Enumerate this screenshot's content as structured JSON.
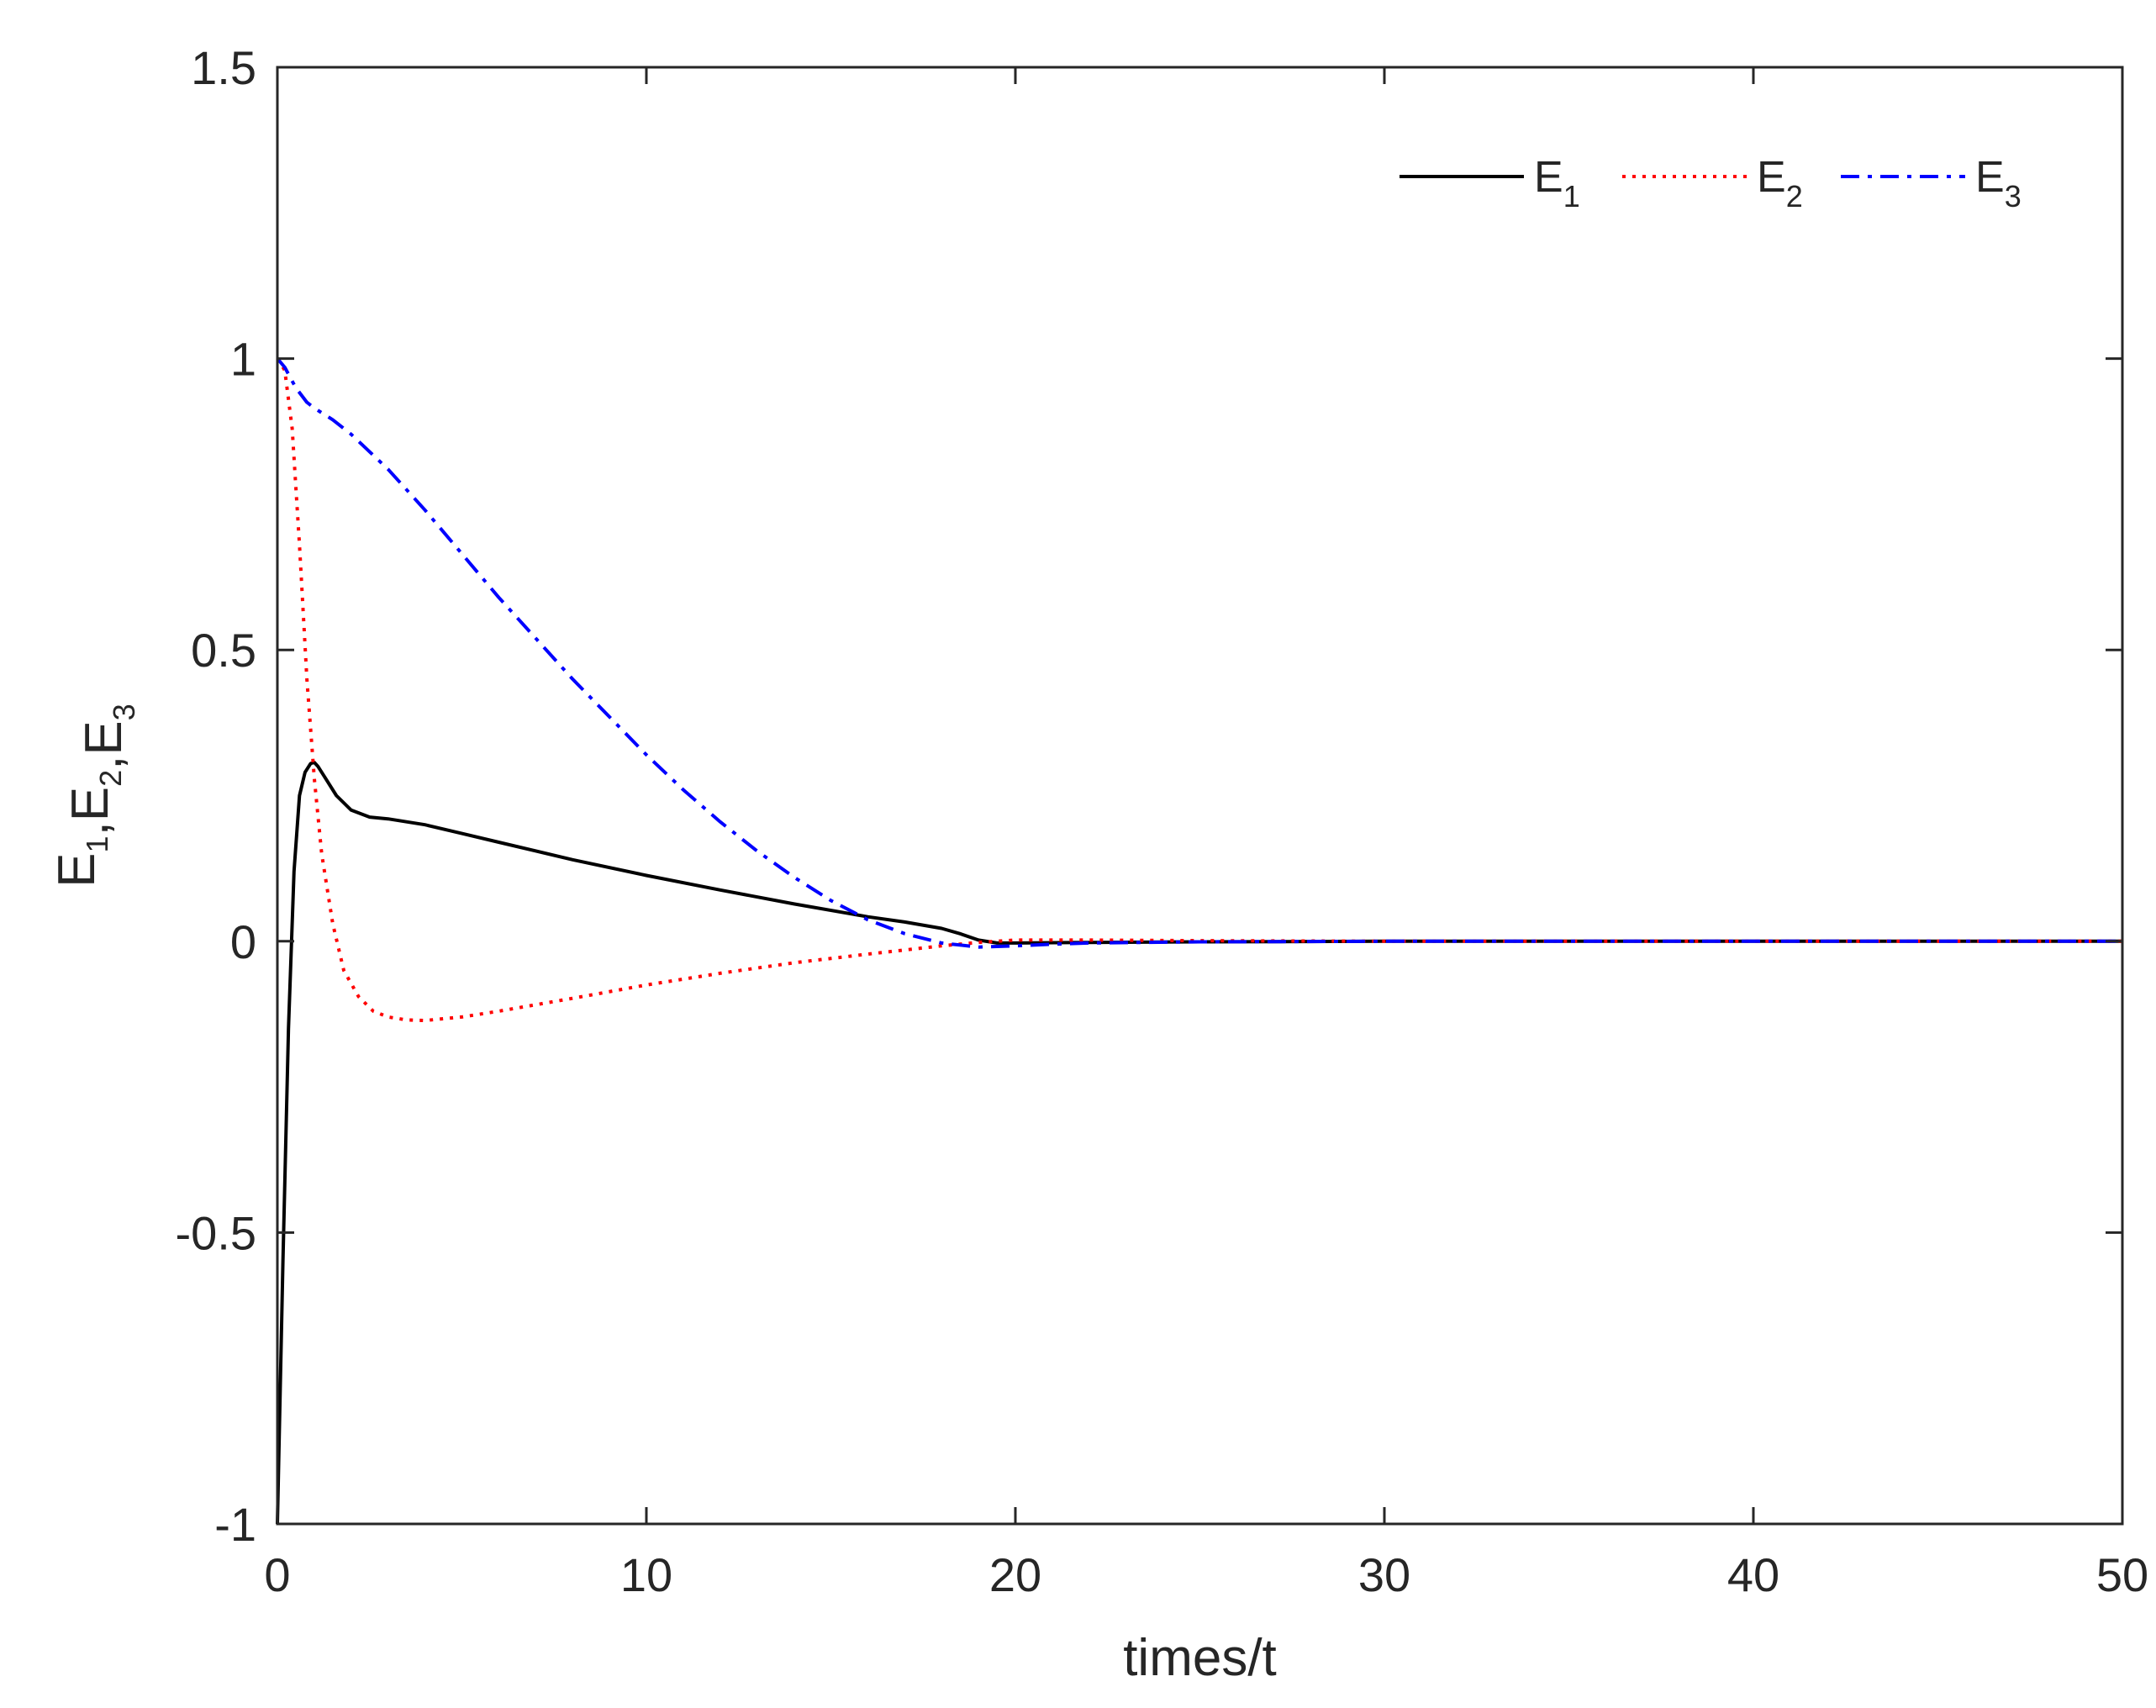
{
  "chart_data": {
    "type": "line",
    "xlabel": "times/t",
    "ylabel": {
      "parts": [
        {
          "text": "E",
          "sub": "1"
        },
        {
          "text": ",E",
          "sub": "2"
        },
        {
          "text": ",E",
          "sub": "3"
        }
      ]
    },
    "xlim": [
      0,
      50
    ],
    "ylim": [
      -1,
      1.5
    ],
    "xticks": [
      0,
      10,
      20,
      30,
      40,
      50
    ],
    "xtick_labels": [
      "0",
      "10",
      "20",
      "30",
      "40",
      "50"
    ],
    "yticks": [
      -1,
      -0.5,
      0,
      0.5,
      1,
      1.5
    ],
    "ytick_labels": [
      "-1",
      "-0.5",
      "0",
      "0.5",
      "1",
      "1.5"
    ],
    "grid": false,
    "legend_position": "top-right",
    "legend_orientation": "horizontal",
    "series": [
      {
        "name": "E",
        "name_sub": "1",
        "color": "#000000",
        "style": "solid",
        "x": [
          0,
          0.15,
          0.3,
          0.45,
          0.6,
          0.75,
          0.9,
          1.0,
          1.1,
          1.3,
          1.6,
          2.0,
          2.5,
          3,
          4,
          5,
          6,
          8,
          10,
          12,
          14,
          16,
          17,
          18,
          18.5,
          19,
          19.5,
          20,
          22,
          25,
          30,
          40,
          50
        ],
        "y": [
          -1,
          -0.55,
          -0.15,
          0.12,
          0.25,
          0.29,
          0.305,
          0.307,
          0.3,
          0.28,
          0.25,
          0.225,
          0.213,
          0.21,
          0.2,
          0.185,
          0.17,
          0.14,
          0.113,
          0.088,
          0.064,
          0.042,
          0.033,
          0.022,
          0.013,
          0.002,
          -0.003,
          -0.003,
          -0.002,
          -0.001,
          0,
          0,
          0
        ]
      },
      {
        "name": "E",
        "name_sub": "2",
        "color": "#ff0000",
        "style": "dotted",
        "x": [
          0,
          0.2,
          0.4,
          0.6,
          0.8,
          1.0,
          1.2,
          1.5,
          1.8,
          2.2,
          2.6,
          3,
          3.5,
          4,
          5,
          6,
          8,
          10,
          12,
          14,
          16,
          18,
          19,
          20,
          22,
          25,
          30,
          40,
          50
        ],
        "y": [
          1.0,
          0.98,
          0.88,
          0.68,
          0.45,
          0.28,
          0.15,
          0.03,
          -0.05,
          -0.095,
          -0.12,
          -0.13,
          -0.135,
          -0.136,
          -0.13,
          -0.12,
          -0.098,
          -0.075,
          -0.055,
          -0.037,
          -0.022,
          -0.008,
          -0.002,
          0.002,
          0.002,
          0.001,
          0,
          0,
          0
        ]
      },
      {
        "name": "E",
        "name_sub": "3",
        "color": "#0000ff",
        "style": "dashdot",
        "x": [
          0,
          0.2,
          0.5,
          0.8,
          1.0,
          1.5,
          2,
          3,
          4,
          5,
          6,
          7,
          8,
          9,
          10,
          11,
          12,
          13,
          14,
          15,
          16,
          17,
          18,
          19,
          20,
          21,
          22,
          25,
          30,
          40,
          50
        ],
        "y": [
          1.0,
          0.985,
          0.95,
          0.925,
          0.915,
          0.895,
          0.87,
          0.81,
          0.74,
          0.665,
          0.59,
          0.52,
          0.45,
          0.385,
          0.32,
          0.26,
          0.205,
          0.155,
          0.11,
          0.07,
          0.037,
          0.013,
          -0.003,
          -0.01,
          -0.008,
          -0.005,
          -0.003,
          -0.001,
          0,
          0,
          0
        ]
      }
    ]
  }
}
